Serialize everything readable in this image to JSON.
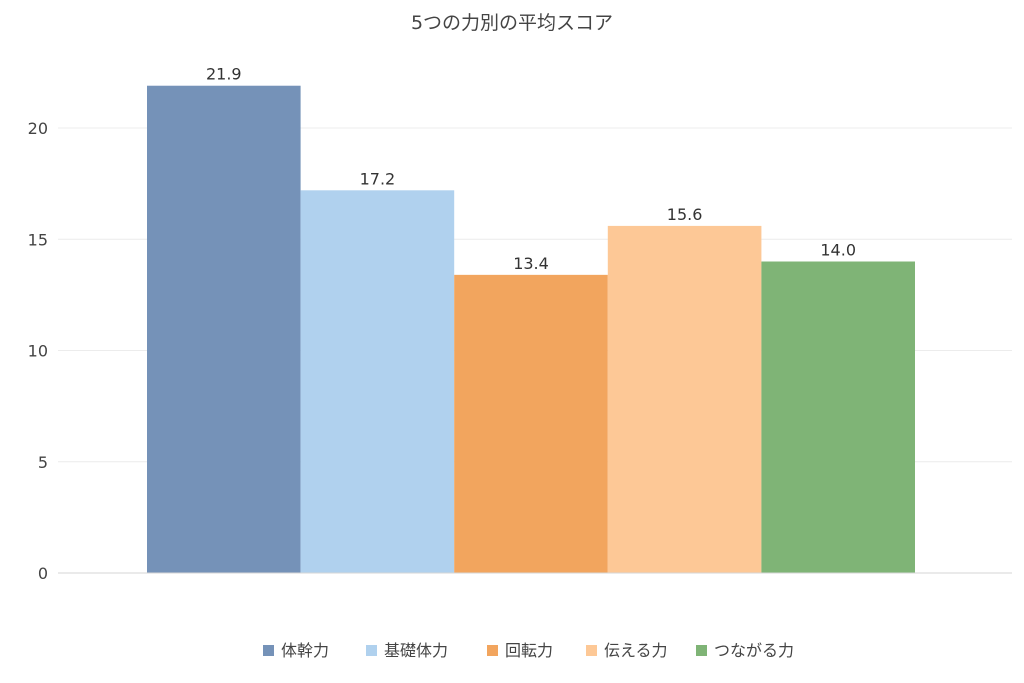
{
  "chart_data": {
    "type": "bar",
    "title": "5つの力別の平均スコア",
    "xlabel": "",
    "ylabel": "",
    "ylim": [
      0,
      23
    ],
    "yticks": [
      0,
      5,
      10,
      15,
      20
    ],
    "grid": true,
    "legend_position": "bottom",
    "series": [
      {
        "name": "体幹力",
        "value": 21.9,
        "label": "21.9",
        "color": "#7592b8"
      },
      {
        "name": "基礎体力",
        "value": 17.2,
        "label": "17.2",
        "color": "#b0d1ee"
      },
      {
        "name": "回転力",
        "value": 13.4,
        "label": "13.4",
        "color": "#f2a55e"
      },
      {
        "name": "伝える力",
        "value": 15.6,
        "label": "15.6",
        "color": "#fdc896"
      },
      {
        "name": "つながる力",
        "value": 14.0,
        "label": "14.0",
        "color": "#7fb476"
      }
    ]
  }
}
